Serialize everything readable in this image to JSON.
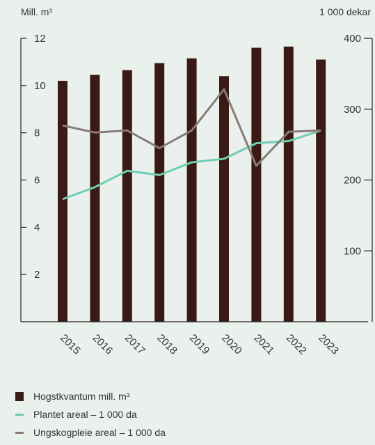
{
  "chart_data": {
    "type": "bar",
    "categories": [
      "2015",
      "2016",
      "2017",
      "2018",
      "2019",
      "2020",
      "2021",
      "2022",
      "2023"
    ],
    "left_axis": {
      "unit_label": "Mill. m³",
      "ylim": [
        0,
        12
      ],
      "ticks": [
        2,
        4,
        6,
        8,
        10,
        12
      ]
    },
    "right_axis": {
      "unit_label": "1 000 dekar",
      "ylim": [
        0,
        400
      ],
      "ticks": [
        100,
        200,
        300,
        400
      ]
    },
    "series": [
      {
        "name": "Hogstkvantum mill. m³",
        "type": "bar",
        "axis": "left",
        "color": "#3a1a14",
        "values": [
          10.2,
          10.45,
          10.65,
          10.95,
          11.15,
          10.4,
          11.6,
          11.65,
          11.1
        ]
      },
      {
        "name": "Plantet areal – 1 000 da",
        "type": "line",
        "axis": "right",
        "color": "#6fcdb3",
        "values": [
          173,
          190,
          213,
          207,
          225,
          230,
          252,
          255,
          270
        ]
      },
      {
        "name": "Ungskogpleie areal – 1 000 da",
        "type": "line",
        "axis": "right",
        "color": "#8a7a77",
        "values": [
          277,
          267,
          270,
          245,
          270,
          328,
          220,
          268,
          270
        ]
      }
    ],
    "grid": false,
    "legend_position": "bottom-left"
  }
}
